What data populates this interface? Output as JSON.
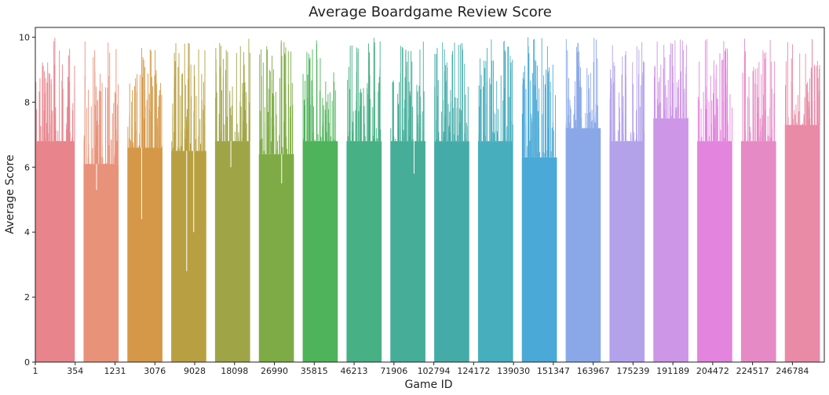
{
  "chart_data": {
    "type": "bar",
    "title": "Average Boardgame Review Score",
    "xlabel": "Game ID",
    "ylabel": "Average Score",
    "ylim": [
      0,
      10.3
    ],
    "yticks": [
      0,
      2,
      4,
      6,
      8,
      10
    ],
    "x_tick_labels": [
      "1",
      "354",
      "1231",
      "3076",
      "9028",
      "18098",
      "26990",
      "35815",
      "46213",
      "71906",
      "102794",
      "124172",
      "139030",
      "151347",
      "163967",
      "175239",
      "191189",
      "204472",
      "224517",
      "246784"
    ],
    "grid": false,
    "legend": "none",
    "groups": [
      {
        "base": 6.8,
        "peak": 10.0,
        "color": "#e8848c"
      },
      {
        "base": 6.1,
        "peak": 10.0,
        "color": "#e8927a"
      },
      {
        "base": 6.6,
        "peak": 9.7,
        "color": "#d59848"
      },
      {
        "base": 6.5,
        "peak": 10.0,
        "color": "#b8a042"
      },
      {
        "base": 6.8,
        "peak": 10.0,
        "color": "#9fa446"
      },
      {
        "base": 6.4,
        "peak": 10.0,
        "color": "#7eab46"
      },
      {
        "base": 6.8,
        "peak": 10.0,
        "color": "#4eb35a"
      },
      {
        "base": 6.8,
        "peak": 10.0,
        "color": "#47b084"
      },
      {
        "base": 6.8,
        "peak": 10.0,
        "color": "#45ad98"
      },
      {
        "base": 6.8,
        "peak": 10.0,
        "color": "#45aba8"
      },
      {
        "base": 6.8,
        "peak": 10.0,
        "color": "#47aebd"
      },
      {
        "base": 6.3,
        "peak": 10.0,
        "color": "#4aa9d6"
      },
      {
        "base": 7.2,
        "peak": 10.0,
        "color": "#8aa8e8"
      },
      {
        "base": 6.8,
        "peak": 10.0,
        "color": "#b3a2ea"
      },
      {
        "base": 7.5,
        "peak": 10.0,
        "color": "#cd96e6"
      },
      {
        "base": 6.8,
        "peak": 10.0,
        "color": "#e384de"
      },
      {
        "base": 6.8,
        "peak": 10.0,
        "color": "#e68ac6"
      },
      {
        "base": 7.3,
        "peak": 10.0,
        "color": "#e98aa6"
      }
    ],
    "dips": [
      {
        "group": 3,
        "value": 2.8
      },
      {
        "group": 2,
        "value": 4.4
      },
      {
        "group": 3,
        "value": 4.0
      },
      {
        "group": 1,
        "value": 5.3
      },
      {
        "group": 5,
        "value": 5.5
      },
      {
        "group": 8,
        "value": 5.8
      },
      {
        "group": 4,
        "value": 6.0
      }
    ]
  }
}
